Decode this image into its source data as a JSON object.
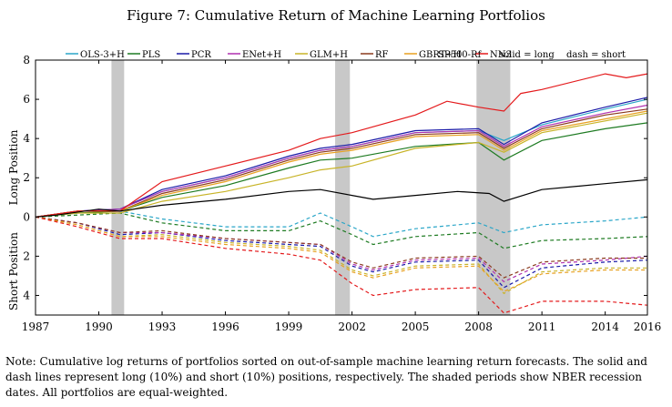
{
  "figure": {
    "title": "Figure 7: Cumulative Return of Machine Learning Portfolios",
    "note": "Note: Cumulative log returns of portfolios sorted on out-of-sample machine learning return forecasts. The solid and dash lines represent long (10%) and short (10%) positions, respectively. The shaded periods show NBER recession dates. All portfolios are equal-weighted."
  },
  "chart_data": {
    "type": "line",
    "title": "Figure 7: Cumulative Return of Machine Learning Portfolios",
    "xlabel": "",
    "ylabel_top": "Long Position",
    "ylabel_bottom": "Short Position",
    "xlim": [
      1987,
      2016
    ],
    "ylim": [
      -5,
      8
    ],
    "x_ticks": [
      1987,
      1990,
      1993,
      1996,
      1999,
      2002,
      2005,
      2008,
      2011,
      2014,
      2016
    ],
    "y_ticks": [
      {
        "value": 8,
        "label": "8"
      },
      {
        "value": 6,
        "label": "6"
      },
      {
        "value": 4,
        "label": "4"
      },
      {
        "value": 2,
        "label": "2"
      },
      {
        "value": 0,
        "label": "0"
      },
      {
        "value": -2,
        "label": "2"
      },
      {
        "value": -4,
        "label": "4"
      }
    ],
    "grid": false,
    "legend_position": "top",
    "legend_notes": [
      "solid = long",
      "dash = short"
    ],
    "recessions": [
      [
        1990.6,
        1991.2
      ],
      [
        2001.2,
        2001.9
      ],
      [
        2007.9,
        2009.5
      ]
    ],
    "series": [
      {
        "name": "OLS-3+H",
        "color": "#2aa6c8",
        "long": [
          [
            1987,
            0
          ],
          [
            1989,
            0.3
          ],
          [
            1991,
            0.4
          ],
          [
            1993,
            1.3
          ],
          [
            1996,
            2.0
          ],
          [
            1999,
            3.0
          ],
          [
            2000.5,
            3.4
          ],
          [
            2002,
            3.6
          ],
          [
            2005,
            4.3
          ],
          [
            2008,
            4.4
          ],
          [
            2009.2,
            3.9
          ],
          [
            2011,
            4.7
          ],
          [
            2014,
            5.5
          ],
          [
            2016,
            6.0
          ]
        ],
        "short": [
          [
            1987,
            0
          ],
          [
            1989,
            0.2
          ],
          [
            1991,
            0.3
          ],
          [
            1993,
            -0.1
          ],
          [
            1996,
            -0.5
          ],
          [
            1999,
            -0.5
          ],
          [
            2000.5,
            0.2
          ],
          [
            2002,
            -0.5
          ],
          [
            2003,
            -1.0
          ],
          [
            2005,
            -0.6
          ],
          [
            2008,
            -0.3
          ],
          [
            2009.2,
            -0.8
          ],
          [
            2011,
            -0.4
          ],
          [
            2014,
            -0.2
          ],
          [
            2016,
            0.0
          ]
        ]
      },
      {
        "name": "PLS",
        "color": "#1e7b22",
        "long": [
          [
            1987,
            0
          ],
          [
            1989,
            0.2
          ],
          [
            1991,
            0.3
          ],
          [
            1993,
            1.0
          ],
          [
            1996,
            1.6
          ],
          [
            1999,
            2.5
          ],
          [
            2000.5,
            2.9
          ],
          [
            2002,
            3.0
          ],
          [
            2005,
            3.6
          ],
          [
            2008,
            3.8
          ],
          [
            2009.2,
            2.9
          ],
          [
            2011,
            3.9
          ],
          [
            2014,
            4.5
          ],
          [
            2016,
            4.8
          ]
        ],
        "short": [
          [
            1987,
            0
          ],
          [
            1989,
            0.1
          ],
          [
            1991,
            0.2
          ],
          [
            1993,
            -0.3
          ],
          [
            1996,
            -0.7
          ],
          [
            1999,
            -0.7
          ],
          [
            2000.5,
            -0.2
          ],
          [
            2002,
            -0.9
          ],
          [
            2003,
            -1.4
          ],
          [
            2005,
            -1.0
          ],
          [
            2008,
            -0.8
          ],
          [
            2009.2,
            -1.6
          ],
          [
            2011,
            -1.2
          ],
          [
            2014,
            -1.1
          ],
          [
            2016,
            -1.0
          ]
        ]
      },
      {
        "name": "PCR",
        "color": "#1a1aa8",
        "long": [
          [
            1987,
            0
          ],
          [
            1989,
            0.3
          ],
          [
            1991,
            0.4
          ],
          [
            1993,
            1.4
          ],
          [
            1996,
            2.1
          ],
          [
            1999,
            3.1
          ],
          [
            2000.5,
            3.5
          ],
          [
            2002,
            3.7
          ],
          [
            2005,
            4.4
          ],
          [
            2008,
            4.5
          ],
          [
            2009.2,
            3.7
          ],
          [
            2011,
            4.8
          ],
          [
            2014,
            5.6
          ],
          [
            2016,
            6.1
          ]
        ],
        "short": [
          [
            1987,
            0
          ],
          [
            1989,
            -0.3
          ],
          [
            1991,
            -0.9
          ],
          [
            1993,
            -0.8
          ],
          [
            1996,
            -1.2
          ],
          [
            1999,
            -1.4
          ],
          [
            2000.5,
            -1.5
          ],
          [
            2002,
            -2.5
          ],
          [
            2003,
            -2.8
          ],
          [
            2005,
            -2.3
          ],
          [
            2008,
            -2.2
          ],
          [
            2009.2,
            -3.6
          ],
          [
            2011,
            -2.6
          ],
          [
            2014,
            -2.3
          ],
          [
            2016,
            -2.2
          ]
        ]
      },
      {
        "name": "ENet+H",
        "color": "#b030b0",
        "long": [
          [
            1987,
            0
          ],
          [
            1989,
            0.3
          ],
          [
            1991,
            0.4
          ],
          [
            1993,
            1.3
          ],
          [
            1996,
            2.0
          ],
          [
            1999,
            3.0
          ],
          [
            2000.5,
            3.4
          ],
          [
            2002,
            3.6
          ],
          [
            2005,
            4.3
          ],
          [
            2008,
            4.4
          ],
          [
            2009.2,
            3.6
          ],
          [
            2011,
            4.6
          ],
          [
            2014,
            5.3
          ],
          [
            2016,
            5.7
          ]
        ],
        "short": [
          [
            1987,
            0
          ],
          [
            1989,
            -0.3
          ],
          [
            1991,
            -0.8
          ],
          [
            1993,
            -0.8
          ],
          [
            1996,
            -1.1
          ],
          [
            1999,
            -1.3
          ],
          [
            2000.5,
            -1.4
          ],
          [
            2002,
            -2.4
          ],
          [
            2003,
            -2.7
          ],
          [
            2005,
            -2.2
          ],
          [
            2008,
            -2.1
          ],
          [
            2009.2,
            -3.3
          ],
          [
            2011,
            -2.4
          ],
          [
            2014,
            -2.2
          ],
          [
            2016,
            -2.0
          ]
        ]
      },
      {
        "name": "GLM+H",
        "color": "#c8b428",
        "long": [
          [
            1987,
            0
          ],
          [
            1989,
            0.2
          ],
          [
            1991,
            0.2
          ],
          [
            1993,
            0.8
          ],
          [
            1996,
            1.3
          ],
          [
            1999,
            2.0
          ],
          [
            2000.5,
            2.4
          ],
          [
            2002,
            2.6
          ],
          [
            2005,
            3.5
          ],
          [
            2008,
            3.8
          ],
          [
            2009.2,
            3.3
          ],
          [
            2011,
            4.3
          ],
          [
            2014,
            4.9
          ],
          [
            2016,
            5.3
          ]
        ],
        "short": [
          [
            1987,
            0
          ],
          [
            1989,
            -0.4
          ],
          [
            1991,
            -1.0
          ],
          [
            1993,
            -0.9
          ],
          [
            1996,
            -1.3
          ],
          [
            1999,
            -1.5
          ],
          [
            2000.5,
            -1.7
          ],
          [
            2002,
            -2.7
          ],
          [
            2003,
            -3.0
          ],
          [
            2005,
            -2.5
          ],
          [
            2008,
            -2.4
          ],
          [
            2009.2,
            -3.9
          ],
          [
            2011,
            -2.8
          ],
          [
            2014,
            -2.6
          ],
          [
            2016,
            -2.6
          ]
        ]
      },
      {
        "name": "RF",
        "color": "#8b3a1e",
        "long": [
          [
            1987,
            0
          ],
          [
            1989,
            0.3
          ],
          [
            1991,
            0.3
          ],
          [
            1993,
            1.2
          ],
          [
            1996,
            1.9
          ],
          [
            1999,
            2.9
          ],
          [
            2000.5,
            3.3
          ],
          [
            2002,
            3.5
          ],
          [
            2005,
            4.2
          ],
          [
            2008,
            4.3
          ],
          [
            2009.2,
            3.5
          ],
          [
            2011,
            4.5
          ],
          [
            2014,
            5.2
          ],
          [
            2016,
            5.5
          ]
        ],
        "short": [
          [
            1987,
            0
          ],
          [
            1989,
            -0.3
          ],
          [
            1991,
            -0.8
          ],
          [
            1993,
            -0.7
          ],
          [
            1996,
            -1.1
          ],
          [
            1999,
            -1.3
          ],
          [
            2000.5,
            -1.4
          ],
          [
            2002,
            -2.3
          ],
          [
            2003,
            -2.6
          ],
          [
            2005,
            -2.1
          ],
          [
            2008,
            -2.0
          ],
          [
            2009.2,
            -3.1
          ],
          [
            2011,
            -2.3
          ],
          [
            2014,
            -2.1
          ],
          [
            2016,
            -2.1
          ]
        ]
      },
      {
        "name": "GBRT+H",
        "color": "#e8a020",
        "long": [
          [
            1987,
            0
          ],
          [
            1989,
            0.3
          ],
          [
            1991,
            0.3
          ],
          [
            1993,
            1.1
          ],
          [
            1996,
            1.8
          ],
          [
            1999,
            2.8
          ],
          [
            2000.5,
            3.2
          ],
          [
            2002,
            3.4
          ],
          [
            2005,
            4.1
          ],
          [
            2008,
            4.2
          ],
          [
            2009.2,
            3.4
          ],
          [
            2011,
            4.4
          ],
          [
            2014,
            5.0
          ],
          [
            2016,
            5.4
          ]
        ],
        "short": [
          [
            1987,
            0
          ],
          [
            1989,
            -0.4
          ],
          [
            1991,
            -1.0
          ],
          [
            1993,
            -1.0
          ],
          [
            1996,
            -1.4
          ],
          [
            1999,
            -1.6
          ],
          [
            2000.5,
            -1.8
          ],
          [
            2002,
            -2.8
          ],
          [
            2003,
            -3.1
          ],
          [
            2005,
            -2.6
          ],
          [
            2008,
            -2.5
          ],
          [
            2009.2,
            -3.8
          ],
          [
            2011,
            -2.9
          ],
          [
            2014,
            -2.7
          ],
          [
            2016,
            -2.7
          ]
        ]
      },
      {
        "name": "NN3",
        "color": "#e41a1c",
        "long": [
          [
            1987,
            0
          ],
          [
            1989,
            0.3
          ],
          [
            1991,
            0.3
          ],
          [
            1993,
            1.8
          ],
          [
            1996,
            2.6
          ],
          [
            1999,
            3.4
          ],
          [
            2000.5,
            4.0
          ],
          [
            2002,
            4.3
          ],
          [
            2005,
            5.2
          ],
          [
            2006.5,
            5.9
          ],
          [
            2008,
            5.6
          ],
          [
            2009.2,
            5.4
          ],
          [
            2010,
            6.3
          ],
          [
            2011,
            6.5
          ],
          [
            2014,
            7.3
          ],
          [
            2015,
            7.1
          ],
          [
            2016,
            7.3
          ]
        ],
        "short": [
          [
            1987,
            0
          ],
          [
            1989,
            -0.5
          ],
          [
            1991,
            -1.1
          ],
          [
            1993,
            -1.1
          ],
          [
            1996,
            -1.6
          ],
          [
            1999,
            -1.9
          ],
          [
            2000.5,
            -2.2
          ],
          [
            2002,
            -3.4
          ],
          [
            2003,
            -4.0
          ],
          [
            2005,
            -3.7
          ],
          [
            2008,
            -3.6
          ],
          [
            2009.2,
            -4.9
          ],
          [
            2011,
            -4.3
          ],
          [
            2014,
            -4.3
          ],
          [
            2016,
            -4.5
          ]
        ]
      },
      {
        "name": "SP500-Rf",
        "color": "#000000",
        "long": [
          [
            1987,
            0
          ],
          [
            1988,
            0.1
          ],
          [
            1990,
            0.4
          ],
          [
            1991,
            0.3
          ],
          [
            1993,
            0.6
          ],
          [
            1996,
            0.9
          ],
          [
            1999,
            1.3
          ],
          [
            2000.5,
            1.4
          ],
          [
            2002,
            1.1
          ],
          [
            2003,
            0.9
          ],
          [
            2005,
            1.1
          ],
          [
            2007,
            1.3
          ],
          [
            2008.5,
            1.2
          ],
          [
            2009.2,
            0.8
          ],
          [
            2011,
            1.4
          ],
          [
            2014,
            1.7
          ],
          [
            2016,
            1.9
          ]
        ],
        "short": []
      }
    ]
  }
}
